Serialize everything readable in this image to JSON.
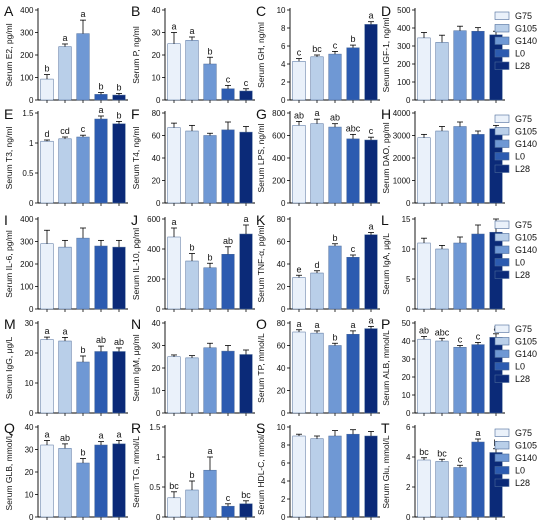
{
  "colors": [
    "#eaf1fa",
    "#b9cfe9",
    "#6f98d4",
    "#2c5bb0",
    "#0b2a78"
  ],
  "legend": [
    "G75",
    "G105",
    "G140",
    "L0",
    "L28"
  ],
  "chart_data": [
    {
      "panel": "A",
      "type": "bar",
      "ylabel": "Serum E2, pg/ml",
      "ylim": [
        0,
        400
      ],
      "ticks": [
        0,
        100,
        200,
        300,
        400
      ],
      "categories": [
        "G75",
        "G105",
        "G140",
        "L0",
        "L28"
      ],
      "values": [
        93,
        237,
        295,
        25,
        22
      ],
      "errors": [
        20,
        12,
        60,
        8,
        7
      ],
      "sig": [
        "b",
        "a",
        "a",
        "b",
        "b"
      ]
    },
    {
      "panel": "B",
      "type": "bar",
      "ylabel": "Serum P, ng/ml",
      "ylim": [
        0,
        40
      ],
      "ticks": [
        0,
        10,
        20,
        30,
        40
      ],
      "categories": [
        "G75",
        "G105",
        "G140",
        "L0",
        "L28"
      ],
      "values": [
        25,
        26.5,
        16,
        5,
        4
      ],
      "errors": [
        5,
        1.5,
        3,
        1.5,
        1
      ],
      "sig": [
        "a",
        "a",
        "b",
        "c",
        "c"
      ]
    },
    {
      "panel": "C",
      "type": "bar",
      "ylabel": "Serum GH, ng/ml",
      "ylim": [
        0,
        10
      ],
      "ticks": [
        0,
        2,
        4,
        6,
        8,
        10
      ],
      "categories": [
        "G75",
        "G105",
        "G140",
        "L0",
        "L28"
      ],
      "values": [
        4.3,
        4.8,
        5.1,
        5.8,
        8.4
      ],
      "errors": [
        0.3,
        0.2,
        0.3,
        0.3,
        0.3
      ],
      "sig": [
        "c",
        "bc",
        "c",
        "b",
        "a"
      ]
    },
    {
      "panel": "D",
      "type": "bar",
      "ylabel": "Serum IGF-1, ng/ml",
      "ylim": [
        0,
        500
      ],
      "ticks": [
        0,
        100,
        200,
        300,
        400,
        500
      ],
      "categories": [
        "G75",
        "G105",
        "G140",
        "L0",
        "L28"
      ],
      "values": [
        345,
        320,
        385,
        382,
        362
      ],
      "errors": [
        30,
        40,
        25,
        20,
        20
      ],
      "sig": []
    },
    {
      "panel": "E",
      "type": "bar",
      "ylabel": "Serum T3, ng/ml",
      "ylim": [
        0,
        1.5
      ],
      "ticks": [
        0,
        0.5,
        1.0,
        1.5
      ],
      "categories": [
        "G75",
        "G105",
        "G140",
        "L0",
        "L28"
      ],
      "values": [
        1.03,
        1.07,
        1.1,
        1.4,
        1.32
      ],
      "errors": [
        0.02,
        0.03,
        0.03,
        0.05,
        0.04
      ],
      "sig": [
        "d",
        "cd",
        "c",
        "a",
        "b"
      ]
    },
    {
      "panel": "F",
      "type": "bar",
      "ylabel": "Serum T4, ng/ml",
      "ylim": [
        0,
        80
      ],
      "ticks": [
        0,
        20,
        40,
        60,
        80
      ],
      "categories": [
        "G75",
        "G105",
        "G140",
        "L0",
        "L28"
      ],
      "values": [
        67,
        64,
        60,
        65,
        63
      ],
      "errors": [
        4,
        5,
        2,
        7,
        5
      ],
      "sig": []
    },
    {
      "panel": "G",
      "type": "bar",
      "ylabel": "Serum LPS, ng/ml",
      "ylim": [
        0,
        800
      ],
      "ticks": [
        0,
        200,
        400,
        600,
        800
      ],
      "categories": [
        "G75",
        "G105",
        "G140",
        "L0",
        "L28"
      ],
      "values": [
        690,
        705,
        675,
        570,
        560
      ],
      "errors": [
        35,
        40,
        30,
        40,
        25
      ],
      "sig": [
        "ab",
        "a",
        "ab",
        "abc",
        "c"
      ]
    },
    {
      "panel": "H",
      "type": "bar",
      "ylabel": "Serum DAO, pg/ml",
      "ylim": [
        0,
        4000
      ],
      "ticks": [
        0,
        1000,
        2000,
        3000,
        4000
      ],
      "categories": [
        "G75",
        "G105",
        "G140",
        "L0",
        "L28"
      ],
      "values": [
        2900,
        3200,
        3400,
        3050,
        3300
      ],
      "errors": [
        150,
        200,
        200,
        150,
        150
      ],
      "sig": []
    },
    {
      "panel": "I",
      "type": "bar",
      "ylabel": "Serum IL-6, pg/ml",
      "ylim": [
        0,
        400
      ],
      "ticks": [
        0,
        100,
        200,
        300,
        400
      ],
      "categories": [
        "G75",
        "G105",
        "G140",
        "L0",
        "L28"
      ],
      "values": [
        290,
        275,
        315,
        280,
        275
      ],
      "errors": [
        60,
        30,
        45,
        25,
        30
      ],
      "sig": []
    },
    {
      "panel": "J",
      "type": "bar",
      "ylabel": "Serum IL-10, pg/ml",
      "ylim": [
        0,
        600
      ],
      "ticks": [
        0,
        200,
        400,
        600
      ],
      "categories": [
        "G75",
        "G105",
        "G140",
        "L0",
        "L28"
      ],
      "values": [
        480,
        320,
        275,
        365,
        500
      ],
      "errors": [
        60,
        50,
        30,
        50,
        60
      ],
      "sig": [
        "a",
        "b",
        "b",
        "ab",
        "a"
      ]
    },
    {
      "panel": "K",
      "type": "bar",
      "ylabel": "Serum TNF-α, pg/ml",
      "ylim": [
        0,
        80
      ],
      "ticks": [
        0,
        20,
        40,
        60,
        80
      ],
      "categories": [
        "G75",
        "G105",
        "G140",
        "L0",
        "L28"
      ],
      "values": [
        28,
        32,
        56,
        46,
        66
      ],
      "errors": [
        2,
        2,
        2,
        2,
        2
      ],
      "sig": [
        "e",
        "d",
        "b",
        "c",
        "a"
      ]
    },
    {
      "panel": "L",
      "type": "bar",
      "ylabel": "Serum IgA, μg/L",
      "ylim": [
        0,
        15
      ],
      "ticks": [
        0,
        5,
        10,
        15
      ],
      "categories": [
        "G75",
        "G105",
        "G140",
        "L0",
        "L28"
      ],
      "values": [
        11,
        10,
        11,
        12.5,
        12.8
      ],
      "errors": [
        0.8,
        0.6,
        1,
        1.5,
        2.2
      ],
      "sig": []
    },
    {
      "panel": "M",
      "type": "bar",
      "ylabel": "Serum IgG, μg/L",
      "ylim": [
        0,
        30
      ],
      "ticks": [
        0,
        10,
        20,
        30
      ],
      "categories": [
        "G75",
        "G105",
        "G140",
        "L0",
        "L28"
      ],
      "values": [
        24.5,
        24,
        17,
        20.5,
        20.5
      ],
      "errors": [
        0.8,
        1.2,
        2,
        1.8,
        1.2
      ],
      "sig": [
        "a",
        "a",
        "b",
        "ab",
        "ab"
      ]
    },
    {
      "panel": "N",
      "type": "bar",
      "ylabel": "Serum IgM, μg/ml",
      "ylim": [
        0,
        40
      ],
      "ticks": [
        0,
        10,
        20,
        30,
        40
      ],
      "categories": [
        "G75",
        "G105",
        "G140",
        "L0",
        "L28"
      ],
      "values": [
        25,
        24.5,
        29,
        27.5,
        26
      ],
      "errors": [
        0.8,
        1,
        2,
        2.5,
        2
      ],
      "sig": []
    },
    {
      "panel": "O",
      "type": "bar",
      "ylabel": "Serum TP, mmol/L",
      "ylim": [
        0,
        80
      ],
      "ticks": [
        0,
        20,
        40,
        60,
        80
      ],
      "categories": [
        "G75",
        "G105",
        "G140",
        "L0",
        "L28"
      ],
      "values": [
        72,
        71,
        60,
        70,
        75
      ],
      "errors": [
        2,
        2,
        2,
        3,
        2
      ],
      "sig": [
        "a",
        "a",
        "b",
        "a",
        "a"
      ]
    },
    {
      "panel": "P",
      "type": "bar",
      "ylabel": "Serum ALB, mmol/L",
      "ylim": [
        0,
        50
      ],
      "ticks": [
        0,
        10,
        20,
        30,
        40,
        50
      ],
      "categories": [
        "G75",
        "G105",
        "G140",
        "L0",
        "L28"
      ],
      "values": [
        41,
        40,
        36.5,
        38,
        42
      ],
      "errors": [
        1.5,
        1.5,
        1,
        1.2,
        2
      ],
      "sig": [
        "ab",
        "abc",
        "c",
        "c",
        "a"
      ]
    },
    {
      "panel": "Q",
      "type": "bar",
      "ylabel": "Serum GLB, mmol/L",
      "ylim": [
        0,
        40
      ],
      "ticks": [
        0,
        10,
        20,
        30,
        40
      ],
      "categories": [
        "G75",
        "G105",
        "G140",
        "L0",
        "L28"
      ],
      "values": [
        32,
        30.5,
        24,
        32,
        32.5
      ],
      "errors": [
        2,
        2,
        2,
        1.5,
        1.5
      ],
      "sig": [
        "a",
        "ab",
        "b",
        "a",
        "a"
      ]
    },
    {
      "panel": "R",
      "type": "bar",
      "ylabel": "Serum TG, mmol/L",
      "ylim": [
        0,
        1.5
      ],
      "ticks": [
        0,
        0.5,
        1.0,
        1.5
      ],
      "categories": [
        "G75",
        "G105",
        "G140",
        "L0",
        "L28"
      ],
      "values": [
        0.32,
        0.45,
        0.78,
        0.18,
        0.22
      ],
      "errors": [
        0.1,
        0.15,
        0.22,
        0.04,
        0.05
      ],
      "sig": [
        "bc",
        "b",
        "a",
        "c",
        "bc"
      ]
    },
    {
      "panel": "S",
      "type": "bar",
      "ylabel": "Serum HDL-C, mmol/L",
      "ylim": [
        0,
        10
      ],
      "ticks": [
        0,
        2,
        4,
        6,
        8,
        10
      ],
      "categories": [
        "G75",
        "G105",
        "G140",
        "L0",
        "L28"
      ],
      "values": [
        9,
        8.7,
        9,
        9.2,
        9
      ],
      "errors": [
        0.2,
        0.3,
        0.6,
        0.5,
        0.5
      ],
      "sig": []
    },
    {
      "panel": "T",
      "type": "bar",
      "ylabel": "Serum Glu, mmol/L",
      "ylim": [
        0,
        6
      ],
      "ticks": [
        0,
        2,
        4,
        6
      ],
      "categories": [
        "G75",
        "G105",
        "G140",
        "L0",
        "L28"
      ],
      "values": [
        3.8,
        3.7,
        3.3,
        5.0,
        4.3
      ],
      "errors": [
        0.15,
        0.15,
        0.15,
        0.2,
        0.25
      ],
      "sig": [
        "bc",
        "bc",
        "c",
        "a",
        "b"
      ]
    }
  ]
}
